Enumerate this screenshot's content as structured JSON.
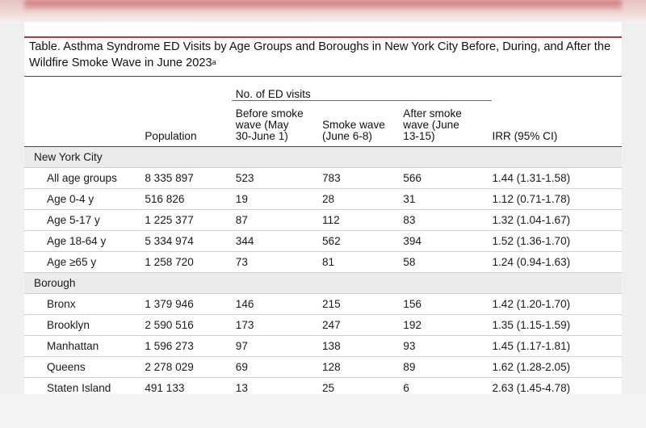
{
  "caption": {
    "text": "Table. Asthma Syndrome ED Visits by Age Groups and Boroughs in New York City Before, During, and After the Wildfire Smoke Wave in June 2023",
    "superscript": "a"
  },
  "table": {
    "group_header": "No. of ED visits",
    "columns": {
      "population": "Population",
      "before": [
        "Before smoke",
        "wave (May",
        "30-June 1)"
      ],
      "during": [
        "Smoke wave",
        "(June 6-8)"
      ],
      "after": [
        "After smoke",
        "wave (June",
        "13-15)"
      ],
      "irr": "IRR (95% CI)"
    },
    "sections": [
      {
        "title": "New York City",
        "rows": [
          {
            "label": "All age groups",
            "population": "8 335 897",
            "before": "523",
            "during": "783",
            "after": "566",
            "irr": "1.44 (1.31-1.58)"
          },
          {
            "label": "Age 0-4 y",
            "population": "516 826",
            "before": "19",
            "during": "28",
            "after": "31",
            "irr": "1.12 (0.71-1.78)"
          },
          {
            "label": "Age 5-17 y",
            "population": "1 225 377",
            "before": "87",
            "during": "112",
            "after": "83",
            "irr": "1.32 (1.04-1.67)"
          },
          {
            "label": "Age 18-64 y",
            "population": "5 334 974",
            "before": "344",
            "during": "562",
            "after": "394",
            "irr": "1.52 (1.36-1.70)"
          },
          {
            "label": "Age ≥65 y",
            "population": "1 258 720",
            "before": "73",
            "during": "81",
            "after": "58",
            "irr": "1.24 (0.94-1.63)"
          }
        ]
      },
      {
        "title": "Borough",
        "rows": [
          {
            "label": "Bronx",
            "population": "1 379 946",
            "before": "146",
            "during": "215",
            "after": "156",
            "irr": "1.42 (1.20-1.70)"
          },
          {
            "label": "Brooklyn",
            "population": "2 590 516",
            "before": "173",
            "during": "247",
            "after": "192",
            "irr": "1.35 (1.15-1.59)"
          },
          {
            "label": "Manhattan",
            "population": "1 596 273",
            "before": "97",
            "during": "138",
            "after": "93",
            "irr": "1.45 (1.17-1.81)"
          },
          {
            "label": "Queens",
            "population": "2 278 029",
            "before": "69",
            "during": "128",
            "after": "89",
            "irr": "1.62 (1.28-2.05)"
          },
          {
            "label": "Staten Island",
            "population": "491 133",
            "before": "13",
            "during": "25",
            "after": "6",
            "irr": "2.63 (1.45-4.78)"
          }
        ]
      }
    ]
  }
}
